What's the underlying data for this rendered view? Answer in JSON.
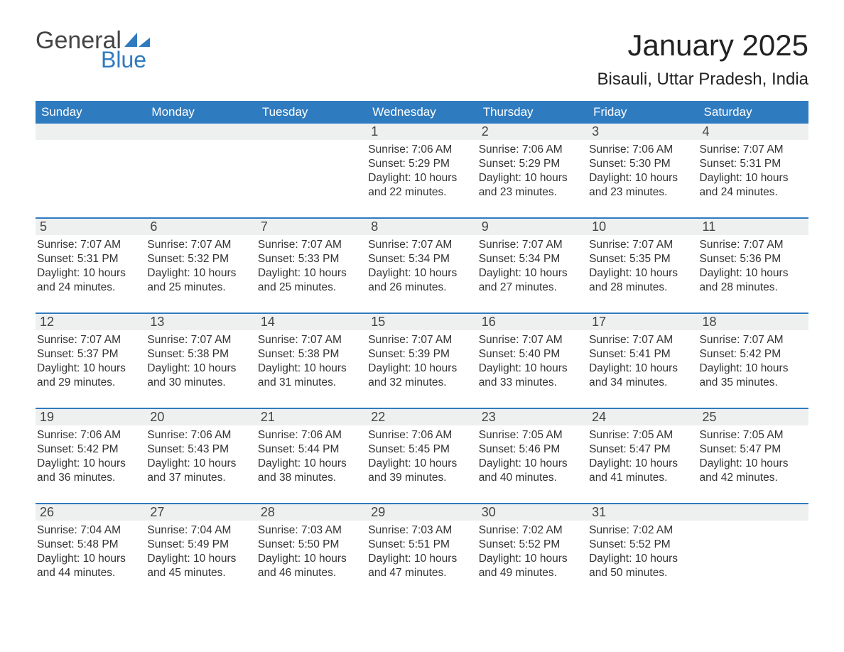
{
  "logo": {
    "general": "General",
    "blue": "Blue"
  },
  "title": "January 2025",
  "location": "Bisauli, Uttar Pradesh, India",
  "colors": {
    "header_bg": "#2f7bbf",
    "header_text": "#ffffff",
    "daynum_bg": "#eef0f0",
    "body_text": "#333333",
    "week_border": "#2f7bbf",
    "background": "#ffffff"
  },
  "day_names": [
    "Sunday",
    "Monday",
    "Tuesday",
    "Wednesday",
    "Thursday",
    "Friday",
    "Saturday"
  ],
  "weeks": [
    [
      {},
      {},
      {},
      {
        "n": "1",
        "sr": "7:06 AM",
        "ss": "5:29 PM",
        "dl": "10 hours and 22 minutes."
      },
      {
        "n": "2",
        "sr": "7:06 AM",
        "ss": "5:29 PM",
        "dl": "10 hours and 23 minutes."
      },
      {
        "n": "3",
        "sr": "7:06 AM",
        "ss": "5:30 PM",
        "dl": "10 hours and 23 minutes."
      },
      {
        "n": "4",
        "sr": "7:07 AM",
        "ss": "5:31 PM",
        "dl": "10 hours and 24 minutes."
      }
    ],
    [
      {
        "n": "5",
        "sr": "7:07 AM",
        "ss": "5:31 PM",
        "dl": "10 hours and 24 minutes."
      },
      {
        "n": "6",
        "sr": "7:07 AM",
        "ss": "5:32 PM",
        "dl": "10 hours and 25 minutes."
      },
      {
        "n": "7",
        "sr": "7:07 AM",
        "ss": "5:33 PM",
        "dl": "10 hours and 25 minutes."
      },
      {
        "n": "8",
        "sr": "7:07 AM",
        "ss": "5:34 PM",
        "dl": "10 hours and 26 minutes."
      },
      {
        "n": "9",
        "sr": "7:07 AM",
        "ss": "5:34 PM",
        "dl": "10 hours and 27 minutes."
      },
      {
        "n": "10",
        "sr": "7:07 AM",
        "ss": "5:35 PM",
        "dl": "10 hours and 28 minutes."
      },
      {
        "n": "11",
        "sr": "7:07 AM",
        "ss": "5:36 PM",
        "dl": "10 hours and 28 minutes."
      }
    ],
    [
      {
        "n": "12",
        "sr": "7:07 AM",
        "ss": "5:37 PM",
        "dl": "10 hours and 29 minutes."
      },
      {
        "n": "13",
        "sr": "7:07 AM",
        "ss": "5:38 PM",
        "dl": "10 hours and 30 minutes."
      },
      {
        "n": "14",
        "sr": "7:07 AM",
        "ss": "5:38 PM",
        "dl": "10 hours and 31 minutes."
      },
      {
        "n": "15",
        "sr": "7:07 AM",
        "ss": "5:39 PM",
        "dl": "10 hours and 32 minutes."
      },
      {
        "n": "16",
        "sr": "7:07 AM",
        "ss": "5:40 PM",
        "dl": "10 hours and 33 minutes."
      },
      {
        "n": "17",
        "sr": "7:07 AM",
        "ss": "5:41 PM",
        "dl": "10 hours and 34 minutes."
      },
      {
        "n": "18",
        "sr": "7:07 AM",
        "ss": "5:42 PM",
        "dl": "10 hours and 35 minutes."
      }
    ],
    [
      {
        "n": "19",
        "sr": "7:06 AM",
        "ss": "5:42 PM",
        "dl": "10 hours and 36 minutes."
      },
      {
        "n": "20",
        "sr": "7:06 AM",
        "ss": "5:43 PM",
        "dl": "10 hours and 37 minutes."
      },
      {
        "n": "21",
        "sr": "7:06 AM",
        "ss": "5:44 PM",
        "dl": "10 hours and 38 minutes."
      },
      {
        "n": "22",
        "sr": "7:06 AM",
        "ss": "5:45 PM",
        "dl": "10 hours and 39 minutes."
      },
      {
        "n": "23",
        "sr": "7:05 AM",
        "ss": "5:46 PM",
        "dl": "10 hours and 40 minutes."
      },
      {
        "n": "24",
        "sr": "7:05 AM",
        "ss": "5:47 PM",
        "dl": "10 hours and 41 minutes."
      },
      {
        "n": "25",
        "sr": "7:05 AM",
        "ss": "5:47 PM",
        "dl": "10 hours and 42 minutes."
      }
    ],
    [
      {
        "n": "26",
        "sr": "7:04 AM",
        "ss": "5:48 PM",
        "dl": "10 hours and 44 minutes."
      },
      {
        "n": "27",
        "sr": "7:04 AM",
        "ss": "5:49 PM",
        "dl": "10 hours and 45 minutes."
      },
      {
        "n": "28",
        "sr": "7:03 AM",
        "ss": "5:50 PM",
        "dl": "10 hours and 46 minutes."
      },
      {
        "n": "29",
        "sr": "7:03 AM",
        "ss": "5:51 PM",
        "dl": "10 hours and 47 minutes."
      },
      {
        "n": "30",
        "sr": "7:02 AM",
        "ss": "5:52 PM",
        "dl": "10 hours and 49 minutes."
      },
      {
        "n": "31",
        "sr": "7:02 AM",
        "ss": "5:52 PM",
        "dl": "10 hours and 50 minutes."
      },
      {}
    ]
  ],
  "labels": {
    "sunrise": "Sunrise:",
    "sunset": "Sunset:",
    "daylight": "Daylight:"
  }
}
